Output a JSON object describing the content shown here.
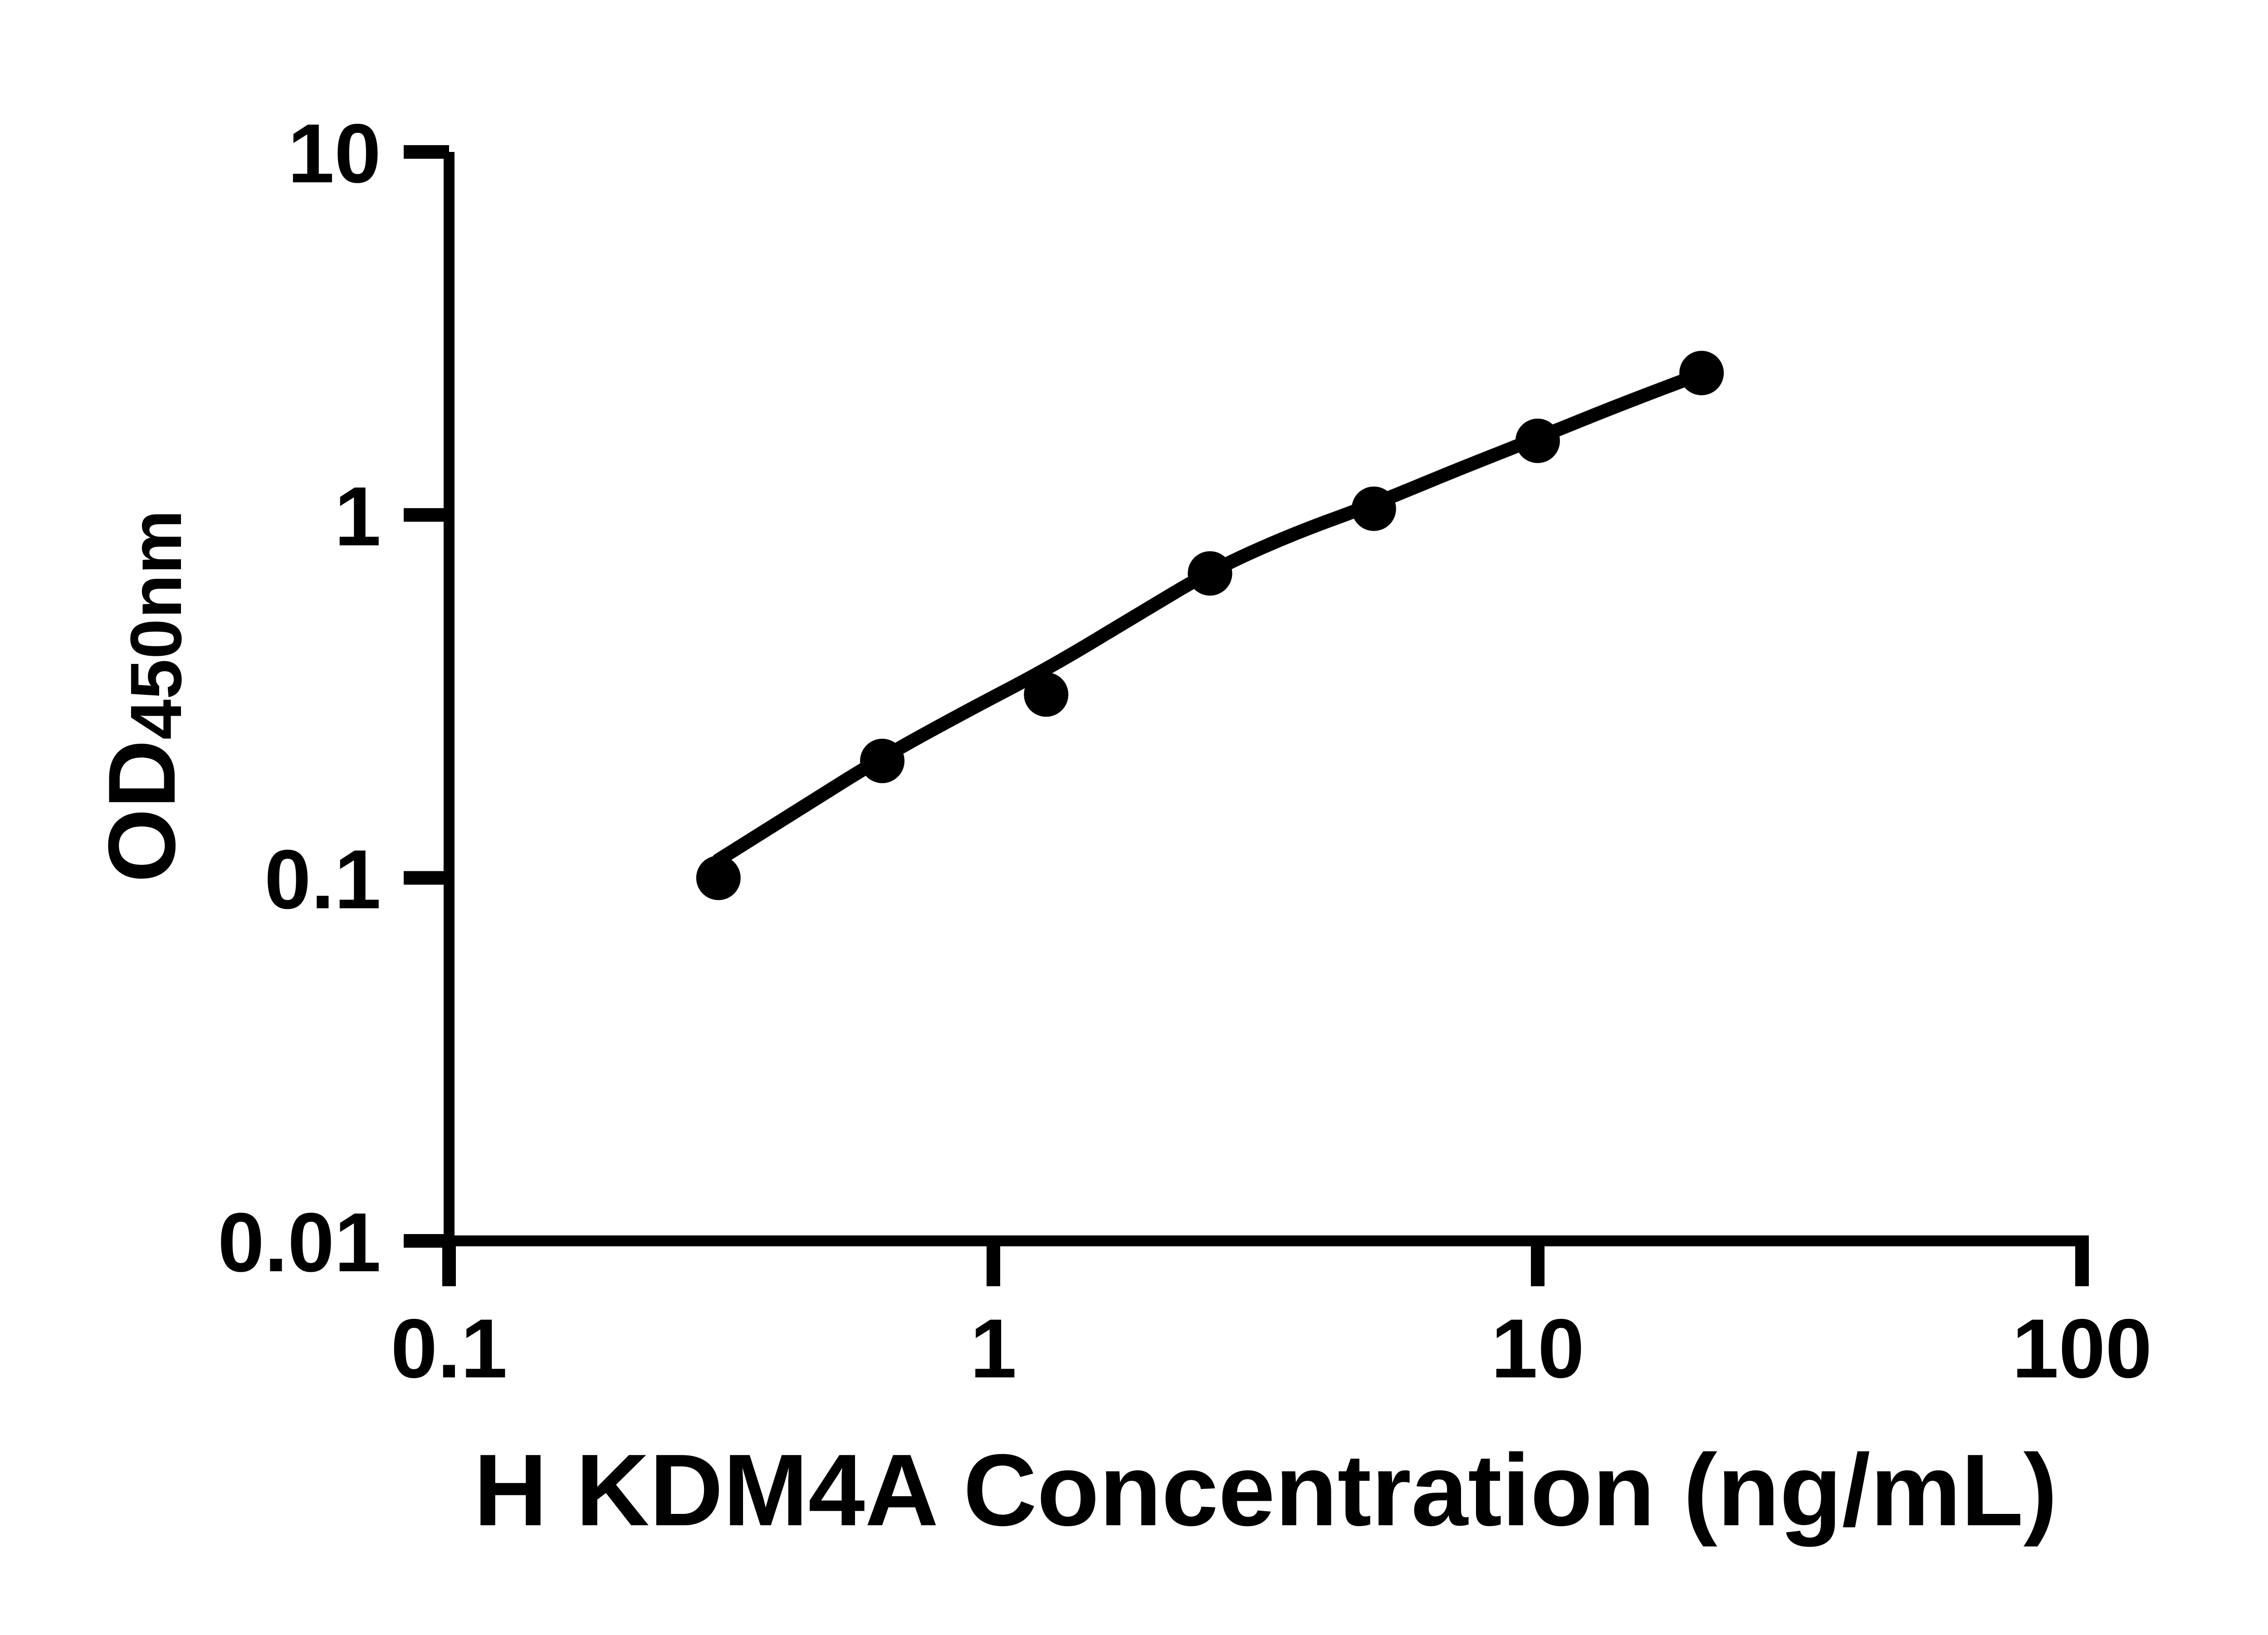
{
  "chart_data": {
    "type": "scatter",
    "title": "",
    "xlabel": "H KDM4A Concentration (ng/mL)",
    "ylabel": "OD450nm",
    "ylabel_main": "OD",
    "ylabel_sub": "450nm",
    "x_scale": "log",
    "y_scale": "log",
    "xlim": [
      0.1,
      100
    ],
    "ylim": [
      0.01,
      10
    ],
    "x_tick_values": [
      0.1,
      1,
      10,
      100
    ],
    "x_tick_labels": [
      "0.1",
      "1",
      "10",
      "100"
    ],
    "y_tick_values": [
      10,
      1,
      0.1,
      0.01
    ],
    "y_tick_labels": [
      "10",
      "1",
      "0.1",
      "0.01"
    ],
    "grid": false,
    "legend": null,
    "axis_color": "#000000",
    "marker_color": "#000000",
    "line_color": "#000000",
    "series": [
      {
        "marker": "circle",
        "x": [
          0.3125,
          0.625,
          1.25,
          2.5,
          5,
          10,
          20
        ],
        "y": [
          0.1,
          0.21,
          0.32,
          0.69,
          1.04,
          1.6,
          2.46
        ]
      }
    ],
    "fit_curve": {
      "x": [
        0.3125,
        0.45,
        0.625,
        0.9,
        1.25,
        1.8,
        2.5,
        3.5,
        5,
        7,
        10,
        14,
        20
      ],
      "y": [
        0.112,
        0.158,
        0.215,
        0.29,
        0.375,
        0.52,
        0.7,
        0.88,
        1.07,
        1.32,
        1.63,
        2.0,
        2.45
      ]
    }
  }
}
